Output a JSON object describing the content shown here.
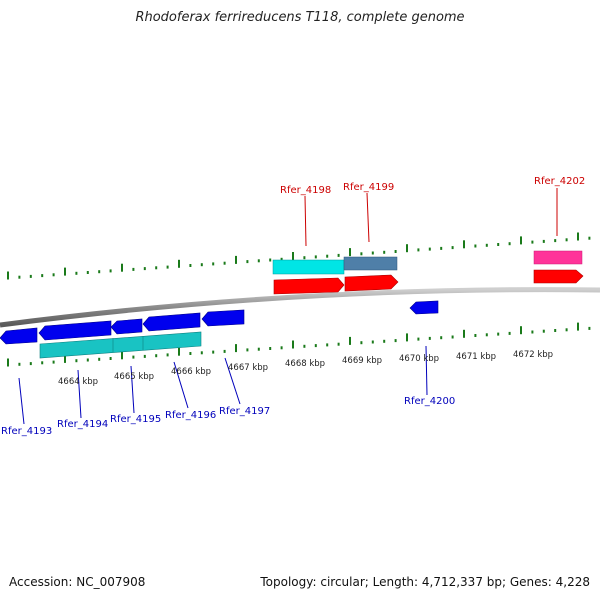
{
  "header": {
    "title": "Rhodoferax ferrireducens T118, complete genome"
  },
  "footer": {
    "accession": "Accession: NC_007908",
    "summary": "Topology: circular; Length: 4,712,337 bp; Genes: 4,228"
  },
  "ruler": {
    "labels": [
      "4664 kbp",
      "4665 kbp",
      "4666 kbp",
      "4667 kbp",
      "4668 kbp",
      "4669 kbp",
      "4670 kbp",
      "4671 kbp",
      "4672 kbp"
    ]
  },
  "genes_top": [
    {
      "name": "Rfer_4198",
      "color": "#cc0000"
    },
    {
      "name": "Rfer_4199",
      "color": "#cc0000"
    },
    {
      "name": "Rfer_4202",
      "color": "#cc0000"
    }
  ],
  "genes_bottom": [
    {
      "name": "Rfer_4193",
      "color": "#0000bb"
    },
    {
      "name": "Rfer_4194",
      "color": "#0000bb"
    },
    {
      "name": "Rfer_4195",
      "color": "#0000bb"
    },
    {
      "name": "Rfer_4196",
      "color": "#0000bb"
    },
    {
      "name": "Rfer_4197",
      "color": "#0000bb"
    },
    {
      "name": "Rfer_4200",
      "color": "#0000bb"
    }
  ],
  "colors": {
    "backbone": "#888888",
    "tick": "#1a7a1a",
    "forward_gene": "#ff0000",
    "reverse_gene": "#0000ee",
    "feature_cyan": "#00e5e5",
    "feature_steel": "#4f7fa8",
    "feature_pink": "#ff3399",
    "feature_teal": "#19c3c3"
  }
}
